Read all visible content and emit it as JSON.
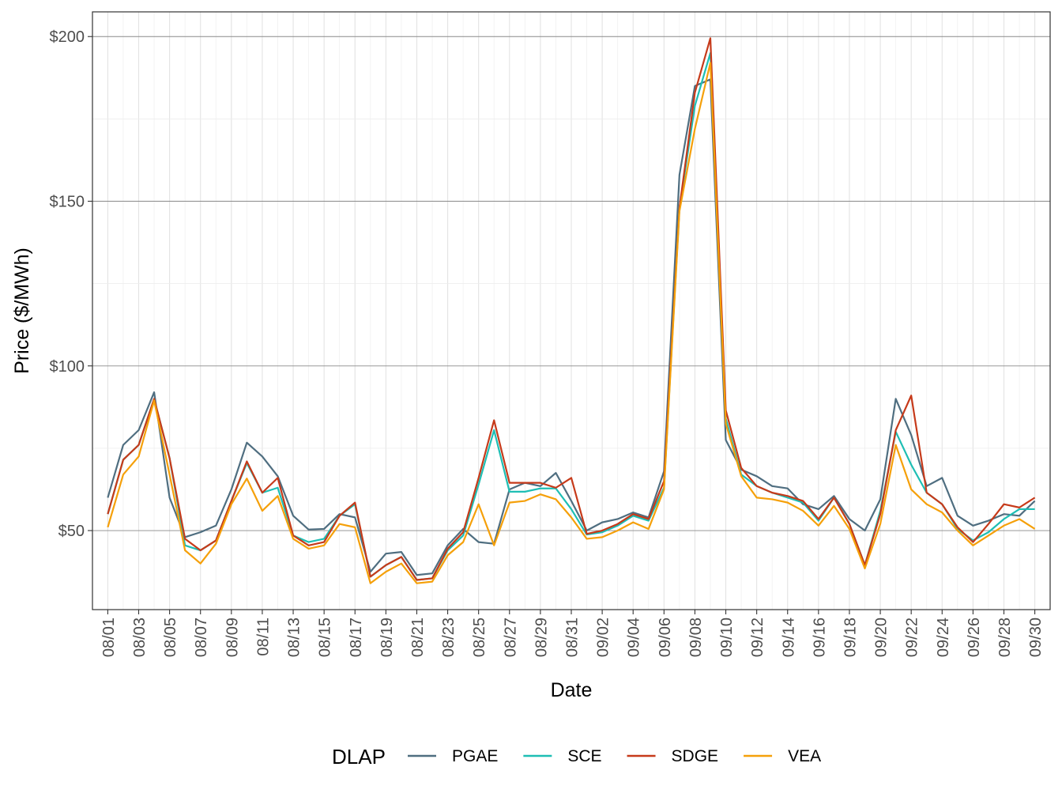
{
  "chart_data": {
    "type": "line",
    "title": "",
    "xlabel": "Date",
    "ylabel": "Price ($/MWh)",
    "ylim": [
      26,
      207.5
    ],
    "y_ticks": [
      50,
      100,
      150,
      200
    ],
    "y_tick_labels": [
      "$50",
      "$100",
      "$150",
      "$200"
    ],
    "x": [
      "08/01",
      "08/02",
      "08/03",
      "08/04",
      "08/05",
      "08/06",
      "08/07",
      "08/08",
      "08/09",
      "08/10",
      "08/11",
      "08/12",
      "08/13",
      "08/14",
      "08/15",
      "08/16",
      "08/17",
      "08/18",
      "08/19",
      "08/20",
      "08/21",
      "08/22",
      "08/23",
      "08/24",
      "08/25",
      "08/26",
      "08/27",
      "08/28",
      "08/29",
      "08/30",
      "08/31",
      "09/01",
      "09/02",
      "09/03",
      "09/04",
      "09/05",
      "09/06",
      "09/07",
      "09/08",
      "09/09",
      "09/10",
      "09/11",
      "09/12",
      "09/13",
      "09/14",
      "09/15",
      "09/16",
      "09/17",
      "09/18",
      "09/19",
      "09/20",
      "09/21",
      "09/22",
      "09/23",
      "09/24",
      "09/25",
      "09/26",
      "09/27",
      "09/28",
      "09/29",
      "09/30"
    ],
    "x_tick_labels": [
      "08/01",
      "08/03",
      "08/05",
      "08/07",
      "08/09",
      "08/11",
      "08/13",
      "08/15",
      "08/17",
      "08/19",
      "08/21",
      "08/23",
      "08/25",
      "08/27",
      "08/29",
      "08/31",
      "09/02",
      "09/04",
      "09/06",
      "09/08",
      "09/10",
      "09/12",
      "09/14",
      "09/16",
      "09/18",
      "09/20",
      "09/22",
      "09/24",
      "09/26",
      "09/28",
      "09/30"
    ],
    "grid": true,
    "legend": {
      "title": "DLAP",
      "position": "bottom"
    },
    "series": [
      {
        "name": "PGAE",
        "color": "#4f6e80",
        "values": [
          60,
          76,
          80.5,
          92,
          60,
          48,
          49.5,
          51.5,
          62.5,
          76.7,
          72.5,
          66.5,
          54.5,
          50.3,
          50.5,
          55,
          54,
          37.5,
          43,
          43.5,
          36.5,
          37,
          45.5,
          50.5,
          46.5,
          46,
          62.5,
          64.5,
          63.5,
          67.5,
          59,
          50,
          52.5,
          53.5,
          55.5,
          54,
          68,
          158,
          185,
          187,
          77.5,
          68.5,
          66.5,
          63.5,
          62.8,
          58,
          56.5,
          60.5,
          53.5,
          50,
          59.5,
          90,
          79,
          63.5,
          66,
          54.5,
          51.5,
          53,
          55,
          54.5,
          59
        ]
      },
      {
        "name": "SCE",
        "color": "#1ebeb4",
        "values": [
          55,
          71.5,
          76,
          90,
          72,
          45.5,
          44,
          47,
          59,
          70.5,
          61.5,
          63,
          48.5,
          46.5,
          47.5,
          54.5,
          58,
          36,
          39.5,
          42,
          35,
          35.5,
          44,
          48.5,
          64,
          80.5,
          61.8,
          61.8,
          62.8,
          62.8,
          56.5,
          48.8,
          49.5,
          51.5,
          54.5,
          53,
          63,
          148,
          179,
          195,
          84,
          67,
          63.5,
          61.5,
          60,
          58.5,
          53,
          60,
          52,
          39.5,
          56,
          80,
          70,
          61.5,
          58,
          50.5,
          47,
          49.5,
          53.5,
          56.5,
          56.5
        ]
      },
      {
        "name": "SDGE",
        "color": "#c63a1a",
        "values": [
          55,
          71.5,
          76,
          90,
          72,
          47.5,
          44,
          47,
          59,
          71,
          61.5,
          66,
          48.5,
          45.5,
          46.5,
          54.5,
          58.5,
          36,
          39.5,
          42,
          35,
          35.5,
          44.5,
          49.5,
          66,
          83.5,
          64.5,
          64.5,
          64.5,
          63,
          66,
          49,
          50,
          52,
          55,
          53.5,
          65,
          148,
          183,
          199.5,
          86.5,
          69,
          63.5,
          61.5,
          60.5,
          59,
          53.5,
          60,
          52,
          39.5,
          55,
          80.5,
          91,
          61.5,
          58,
          51,
          46.5,
          52,
          58,
          57,
          60
        ]
      },
      {
        "name": "VEA",
        "color": "#f5a00a",
        "values": [
          51,
          67,
          72.5,
          89.5,
          67,
          44,
          40,
          46,
          58,
          65.8,
          56,
          60.5,
          47.5,
          44.5,
          45.5,
          52,
          51,
          34,
          37.5,
          40,
          34,
          34.5,
          42.5,
          46.5,
          58,
          45.5,
          58.5,
          59,
          61,
          59.5,
          54,
          47.5,
          48,
          50,
          52.5,
          50.5,
          62.5,
          147,
          172,
          192,
          82.5,
          66.5,
          60,
          59.5,
          58.5,
          56,
          51.5,
          57.5,
          50.5,
          38.5,
          52,
          76,
          62.5,
          58,
          55.5,
          50,
          45.5,
          48.5,
          51.5,
          53.5,
          50.5
        ]
      }
    ]
  }
}
